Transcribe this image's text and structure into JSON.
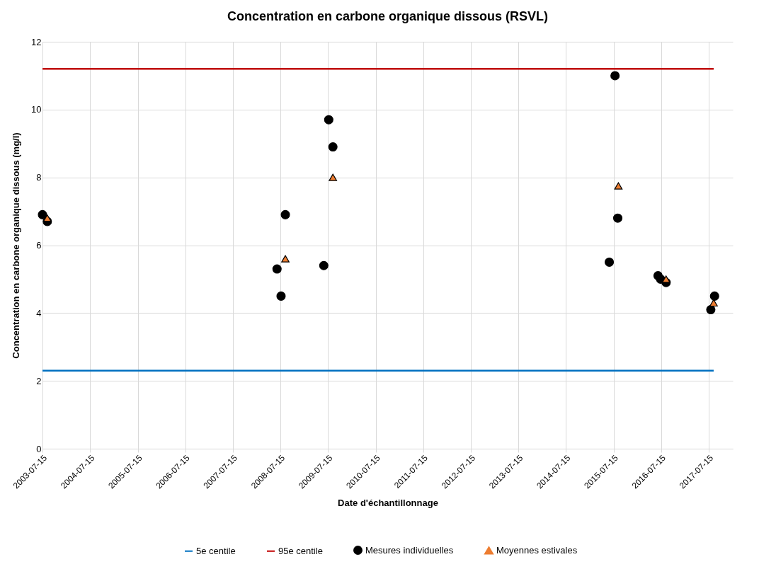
{
  "chart_data": {
    "type": "scatter",
    "title": "Concentration en carbone organique dissous (RSVL)",
    "xlabel": "Date d'échantillonnage",
    "ylabel": "Concentration en carbone organique dissous (mg/l)",
    "xlim": [
      "2003-07-15",
      "2018-01-15"
    ],
    "xticks": [
      "2003-07-15",
      "2004-07-15",
      "2005-07-15",
      "2006-07-15",
      "2007-07-15",
      "2008-07-15",
      "2009-07-15",
      "2010-07-15",
      "2011-07-15",
      "2012-07-15",
      "2013-07-15",
      "2014-07-15",
      "2015-07-15",
      "2016-07-15",
      "2017-07-15"
    ],
    "ylim": [
      0,
      12
    ],
    "yticks": [
      0,
      2,
      4,
      6,
      8,
      10,
      12
    ],
    "grid": true,
    "legend": "bottom",
    "series": [
      {
        "name": "5e centile",
        "type": "line",
        "color": "#0070c0",
        "marker": "none",
        "x": [
          "2003-07-15",
          "2017-08-21"
        ],
        "values": [
          2.3,
          2.3
        ]
      },
      {
        "name": "95e centile",
        "type": "line",
        "color": "#c00000",
        "marker": "none",
        "x": [
          "2003-07-15",
          "2017-08-21"
        ],
        "values": [
          11.2,
          11.2
        ]
      },
      {
        "name": "Mesures individuelles",
        "color": "#000000",
        "marker": "circle",
        "x": [
          "2003-07-15",
          "2003-08-21",
          "2008-06-18",
          "2008-07-19",
          "2008-08-21",
          "2009-06-12",
          "2009-07-20",
          "2009-08-21",
          "2015-06-12",
          "2015-07-26",
          "2015-08-16",
          "2016-06-20",
          "2016-07-10",
          "2016-08-21",
          "2017-07-30",
          "2017-08-28"
        ],
        "values": [
          6.9,
          6.7,
          5.3,
          4.5,
          6.9,
          5.4,
          9.7,
          8.9,
          5.5,
          11.0,
          6.8,
          5.1,
          5.0,
          4.9,
          4.1,
          4.5
        ]
      },
      {
        "name": "Moyennes estivales",
        "color": "#ed7d31",
        "marker": "triangle",
        "x": [
          "2003-08-21",
          "2008-08-21",
          "2009-08-21",
          "2015-08-21",
          "2016-08-21",
          "2017-08-21"
        ],
        "values": [
          6.8,
          5.6,
          8.0,
          7.75,
          5.0,
          4.3
        ]
      }
    ]
  }
}
